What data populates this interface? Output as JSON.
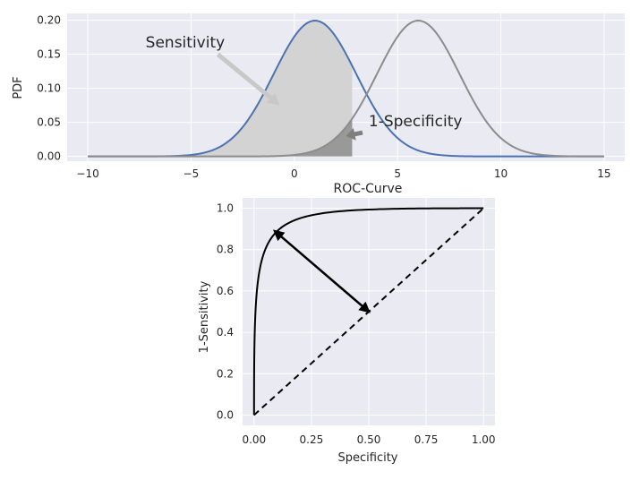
{
  "colors": {
    "axes_bg": "#eaeaf2",
    "grid": "#ffffff",
    "positive_curve": "#4c72b0",
    "negative_curve": "#8c8c8c",
    "sensitivity_fill": "#d3d3d3",
    "specificity_fill": "#999999",
    "sensitivity_arrow": "#c8c8c8",
    "specificity_arrow": "#7f7f7f",
    "roc_line": "#000000"
  },
  "chart_data": [
    {
      "type": "line",
      "xlabel": "",
      "ylabel": "PDF",
      "xlim": [
        -11,
        16
      ],
      "ylim": [
        -0.007,
        0.21
      ],
      "xticks": [
        -10,
        -5,
        0,
        5,
        10,
        15
      ],
      "xtick_labels": [
        "−10",
        "−5",
        "0",
        "5",
        "10",
        "15"
      ],
      "yticks": [
        0.0,
        0.05,
        0.1,
        0.15,
        0.2
      ],
      "ytick_labels": [
        "0.00",
        "0.05",
        "0.10",
        "0.15",
        "0.20"
      ],
      "grid": true,
      "series": [
        {
          "distribution": "normal",
          "mean": 1,
          "std": 2,
          "x_range": [
            -10,
            15
          ],
          "color": "#4c72b0"
        },
        {
          "distribution": "normal",
          "mean": 6,
          "std": 2,
          "x_range": [
            -10,
            15
          ],
          "color": "#8c8c8c"
        }
      ],
      "shaded_regions": [
        {
          "curve": 0,
          "x_range": [
            -10,
            2.8
          ],
          "color": "#d3d3d3"
        },
        {
          "curve": 1,
          "x_range": [
            -10,
            2.8
          ],
          "color": "#999999"
        }
      ],
      "annotations": [
        {
          "text": "Sensitivity",
          "xy": [
            -0.7,
            0.075
          ],
          "xytext": [
            -7.2,
            0.168
          ]
        },
        {
          "text": "1-Specificity",
          "xy": [
            2.5,
            0.03
          ],
          "xytext": [
            3.6,
            0.052
          ]
        }
      ]
    },
    {
      "type": "line",
      "title": "ROC-Curve",
      "xlabel": "Specificity",
      "ylabel": "1-Sensitivity",
      "xlim": [
        -0.05,
        1.05
      ],
      "ylim": [
        -0.05,
        1.05
      ],
      "xticks": [
        0.0,
        0.25,
        0.5,
        0.75,
        1.0
      ],
      "xtick_labels": [
        "0.00",
        "0.25",
        "0.50",
        "0.75",
        "1.00"
      ],
      "yticks": [
        0.0,
        0.2,
        0.4,
        0.6,
        0.8,
        1.0
      ],
      "ytick_labels": [
        "0.0",
        "0.2",
        "0.4",
        "0.6",
        "0.8",
        "1.0"
      ],
      "grid": true,
      "series": [
        {
          "curve": "binormal_roc",
          "d_prime": 2.5,
          "style": "solid",
          "color": "#000000"
        },
        {
          "curve": "diagonal",
          "x": [
            0,
            1
          ],
          "y": [
            0,
            1
          ],
          "style": "dashed",
          "color": "#000000"
        }
      ],
      "annotations": [
        {
          "type": "double_arrow",
          "from": [
            0.09,
            0.89
          ],
          "to": [
            0.5,
            0.5
          ]
        }
      ]
    }
  ]
}
